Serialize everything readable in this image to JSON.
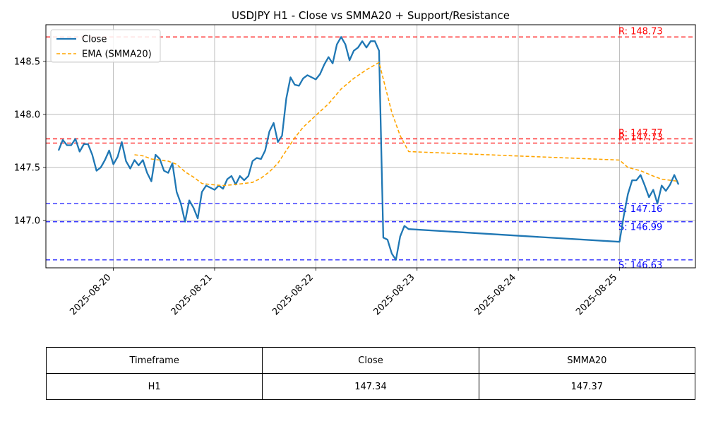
{
  "chart_data": {
    "type": "line",
    "title": "USDJPY H1 - Close vs SMMA20 + Support/Resistance",
    "xlabel": "",
    "ylabel": "",
    "x_ticks": [
      "2025-08-20",
      "2025-08-21",
      "2025-08-22",
      "2025-08-23",
      "2025-08-24",
      "2025-08-25"
    ],
    "y_ticks": [
      "147.0",
      "147.5",
      "148.0",
      "148.5"
    ],
    "ylim": [
      146.555,
      148.845
    ],
    "grid": true,
    "legend_position": "top-left",
    "series": [
      {
        "name": "Close",
        "color": "#1f77b4",
        "points": [
          [
            "2025-08-19 11:00",
            147.66
          ],
          [
            "2025-08-19 12:00",
            147.76
          ],
          [
            "2025-08-19 13:00",
            147.71
          ],
          [
            "2025-08-19 14:00",
            147.71
          ],
          [
            "2025-08-19 15:00",
            147.77
          ],
          [
            "2025-08-19 16:00",
            147.65
          ],
          [
            "2025-08-19 17:00",
            147.72
          ],
          [
            "2025-08-19 18:00",
            147.72
          ],
          [
            "2025-08-19 19:00",
            147.62
          ],
          [
            "2025-08-19 20:00",
            147.47
          ],
          [
            "2025-08-19 21:00",
            147.5
          ],
          [
            "2025-08-19 22:00",
            147.57
          ],
          [
            "2025-08-19 23:00",
            147.66
          ],
          [
            "2025-08-20 00:00",
            147.53
          ],
          [
            "2025-08-20 01:00",
            147.6
          ],
          [
            "2025-08-20 02:00",
            147.74
          ],
          [
            "2025-08-20 03:00",
            147.56
          ],
          [
            "2025-08-20 04:00",
            147.49
          ],
          [
            "2025-08-20 05:00",
            147.57
          ],
          [
            "2025-08-20 06:00",
            147.52
          ],
          [
            "2025-08-20 07:00",
            147.57
          ],
          [
            "2025-08-20 08:00",
            147.45
          ],
          [
            "2025-08-20 09:00",
            147.37
          ],
          [
            "2025-08-20 10:00",
            147.62
          ],
          [
            "2025-08-20 11:00",
            147.58
          ],
          [
            "2025-08-20 12:00",
            147.47
          ],
          [
            "2025-08-20 13:00",
            147.45
          ],
          [
            "2025-08-20 14:00",
            147.54
          ],
          [
            "2025-08-20 15:00",
            147.27
          ],
          [
            "2025-08-20 16:00",
            147.16
          ],
          [
            "2025-08-20 17:00",
            146.99
          ],
          [
            "2025-08-20 18:00",
            147.19
          ],
          [
            "2025-08-20 19:00",
            147.12
          ],
          [
            "2025-08-20 20:00",
            147.02
          ],
          [
            "2025-08-20 21:00",
            147.27
          ],
          [
            "2025-08-20 22:00",
            147.33
          ],
          [
            "2025-08-20 23:00",
            147.31
          ],
          [
            "2025-08-21 00:00",
            147.29
          ],
          [
            "2025-08-21 01:00",
            147.33
          ],
          [
            "2025-08-21 02:00",
            147.3
          ],
          [
            "2025-08-21 03:00",
            147.39
          ],
          [
            "2025-08-21 04:00",
            147.42
          ],
          [
            "2025-08-21 05:00",
            147.34
          ],
          [
            "2025-08-21 06:00",
            147.42
          ],
          [
            "2025-08-21 07:00",
            147.38
          ],
          [
            "2025-08-21 08:00",
            147.42
          ],
          [
            "2025-08-21 09:00",
            147.56
          ],
          [
            "2025-08-21 10:00",
            147.59
          ],
          [
            "2025-08-21 11:00",
            147.58
          ],
          [
            "2025-08-21 12:00",
            147.66
          ],
          [
            "2025-08-21 13:00",
            147.84
          ],
          [
            "2025-08-21 14:00",
            147.92
          ],
          [
            "2025-08-21 15:00",
            147.74
          ],
          [
            "2025-08-21 16:00",
            147.8
          ],
          [
            "2025-08-21 17:00",
            148.15
          ],
          [
            "2025-08-21 18:00",
            148.35
          ],
          [
            "2025-08-21 19:00",
            148.28
          ],
          [
            "2025-08-21 20:00",
            148.27
          ],
          [
            "2025-08-21 21:00",
            148.34
          ],
          [
            "2025-08-21 22:00",
            148.37
          ],
          [
            "2025-08-22 00:00",
            148.33
          ],
          [
            "2025-08-22 01:00",
            148.38
          ],
          [
            "2025-08-22 02:00",
            148.47
          ],
          [
            "2025-08-22 03:00",
            148.54
          ],
          [
            "2025-08-22 04:00",
            148.48
          ],
          [
            "2025-08-22 05:00",
            148.66
          ],
          [
            "2025-08-22 06:00",
            148.73
          ],
          [
            "2025-08-22 07:00",
            148.66
          ],
          [
            "2025-08-22 08:00",
            148.51
          ],
          [
            "2025-08-22 09:00",
            148.6
          ],
          [
            "2025-08-22 10:00",
            148.63
          ],
          [
            "2025-08-22 11:00",
            148.69
          ],
          [
            "2025-08-22 12:00",
            148.63
          ],
          [
            "2025-08-22 13:00",
            148.69
          ],
          [
            "2025-08-22 14:00",
            148.69
          ],
          [
            "2025-08-22 15:00",
            148.6
          ],
          [
            "2025-08-22 16:00",
            146.84
          ],
          [
            "2025-08-22 17:00",
            146.82
          ],
          [
            "2025-08-22 18:00",
            146.69
          ],
          [
            "2025-08-22 19:00",
            146.63
          ],
          [
            "2025-08-22 20:00",
            146.85
          ],
          [
            "2025-08-22 21:00",
            146.95
          ],
          [
            "2025-08-22 22:00",
            146.92
          ],
          [
            "2025-08-25 00:00",
            146.8
          ],
          [
            "2025-08-25 01:00",
            147.04
          ],
          [
            "2025-08-25 02:00",
            147.25
          ],
          [
            "2025-08-25 03:00",
            147.38
          ],
          [
            "2025-08-25 04:00",
            147.38
          ],
          [
            "2025-08-25 05:00",
            147.43
          ],
          [
            "2025-08-25 06:00",
            147.33
          ],
          [
            "2025-08-25 07:00",
            147.22
          ],
          [
            "2025-08-25 08:00",
            147.29
          ],
          [
            "2025-08-25 09:00",
            147.16
          ],
          [
            "2025-08-25 10:00",
            147.33
          ],
          [
            "2025-08-25 11:00",
            147.28
          ],
          [
            "2025-08-25 12:00",
            147.34
          ],
          [
            "2025-08-25 13:00",
            147.43
          ],
          [
            "2025-08-25 14:00",
            147.34
          ]
        ]
      },
      {
        "name": "EMA (SMMA20)",
        "color": "#ffa500",
        "style": "dashed",
        "points": [
          [
            "2025-08-20 05:00",
            147.62
          ],
          [
            "2025-08-20 07:00",
            147.61
          ],
          [
            "2025-08-20 09:00",
            147.58
          ],
          [
            "2025-08-20 11:00",
            147.57
          ],
          [
            "2025-08-20 13:00",
            147.56
          ],
          [
            "2025-08-20 15:00",
            147.53
          ],
          [
            "2025-08-20 17:00",
            147.46
          ],
          [
            "2025-08-20 19:00",
            147.41
          ],
          [
            "2025-08-20 21:00",
            147.35
          ],
          [
            "2025-08-20 23:00",
            147.34
          ],
          [
            "2025-08-21 02:00",
            147.33
          ],
          [
            "2025-08-21 05:00",
            147.34
          ],
          [
            "2025-08-21 07:00",
            147.35
          ],
          [
            "2025-08-21 09:00",
            147.36
          ],
          [
            "2025-08-21 11:00",
            147.4
          ],
          [
            "2025-08-21 13:00",
            147.46
          ],
          [
            "2025-08-21 15:00",
            147.54
          ],
          [
            "2025-08-21 17:00",
            147.66
          ],
          [
            "2025-08-21 19:00",
            147.78
          ],
          [
            "2025-08-21 21:00",
            147.88
          ],
          [
            "2025-08-22 00:00",
            147.99
          ],
          [
            "2025-08-22 03:00",
            148.1
          ],
          [
            "2025-08-22 06:00",
            148.24
          ],
          [
            "2025-08-22 09:00",
            148.34
          ],
          [
            "2025-08-22 12:00",
            148.42
          ],
          [
            "2025-08-22 15:00",
            148.49
          ],
          [
            "2025-08-22 18:00",
            148.02
          ],
          [
            "2025-08-22 20:00",
            147.8
          ],
          [
            "2025-08-22 22:00",
            147.65
          ],
          [
            "2025-08-25 00:00",
            147.57
          ],
          [
            "2025-08-25 02:00",
            147.5
          ],
          [
            "2025-08-25 05:00",
            147.47
          ],
          [
            "2025-08-25 08:00",
            147.42
          ],
          [
            "2025-08-25 10:00",
            147.39
          ],
          [
            "2025-08-25 14:00",
            147.37
          ]
        ]
      }
    ],
    "resistance": [
      {
        "label": "R: 148.73",
        "value": 148.73
      },
      {
        "label": "R: 147.77",
        "value": 147.77
      },
      {
        "label": "R: 147.73",
        "value": 147.73
      }
    ],
    "support": [
      {
        "label": "S: 147.16",
        "value": 147.16
      },
      {
        "label": "S: 146.99",
        "value": 146.99
      },
      {
        "label": "S: 146.63",
        "value": 146.63
      }
    ],
    "resistance_color": "#ff0000",
    "support_color": "#0000ff"
  },
  "table": {
    "headers": [
      "Timeframe",
      "Close",
      "SMMA20"
    ],
    "row": [
      "H1",
      "147.34",
      "147.37"
    ]
  }
}
